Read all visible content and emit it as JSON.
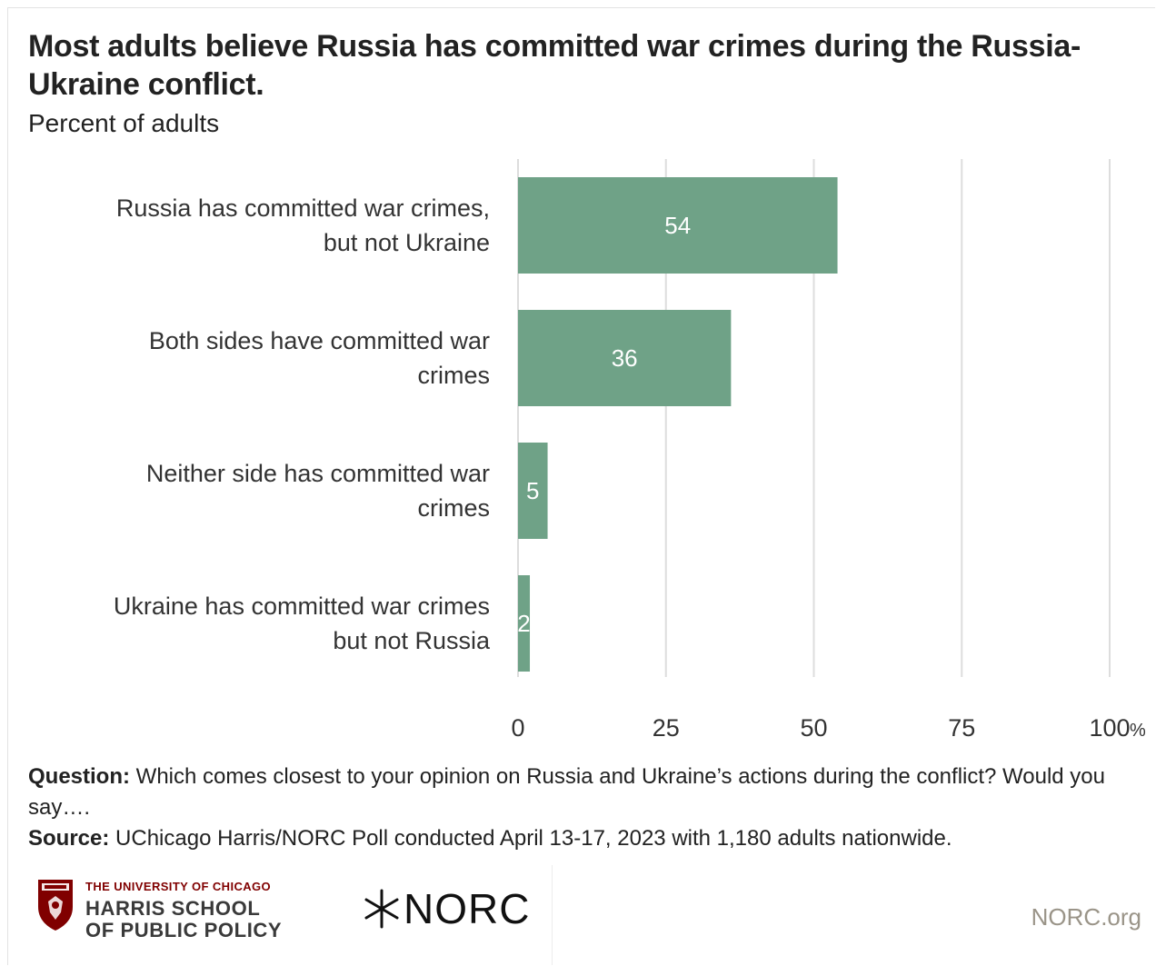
{
  "chart_data": {
    "type": "bar",
    "orientation": "horizontal",
    "title": "Most adults believe Russia has committed war crimes during the Russia-Ukraine conflict.",
    "subtitle": "Percent of adults",
    "categories": [
      [
        "Russia has committed war crimes,",
        "but not Ukraine"
      ],
      [
        "Both sides have committed war",
        "crimes"
      ],
      [
        "Neither side has committed war",
        "crimes"
      ],
      [
        "Ukraine has committed war crimes",
        "but not Russia"
      ]
    ],
    "values": [
      54,
      36,
      5,
      2
    ],
    "data_labels": [
      "54",
      "36",
      "5",
      "2"
    ],
    "xlim": [
      0,
      100
    ],
    "ticks": [
      0,
      25,
      50,
      75,
      100
    ],
    "tick_labels": [
      "0",
      "25",
      "50",
      "75",
      "100"
    ],
    "unit": "%",
    "grid": true,
    "legend": "none",
    "colors": {
      "bar": "#6fa287",
      "grid": "#dddddd",
      "label_text": "#ffffff"
    }
  },
  "notes": {
    "question_label": "Question:",
    "question_text": " Which comes closest to your opinion on Russia and Ukraine’s actions during the conflict? Would you say….",
    "source_label": "Source:",
    "source_text": " UChicago Harris/NORC Poll conducted April 13-17, 2023 with 1,180 adults nationwide."
  },
  "footer": {
    "uc_top": "THE UNIVERSITY OF CHICAGO",
    "uc_line1": "HARRIS SCHOOL",
    "uc_line2": "OF PUBLIC POLICY",
    "uc_icon": "shield-icon",
    "norc_name": "NORC",
    "norc_icon": "norc-star-icon",
    "url": "NORC.org"
  }
}
